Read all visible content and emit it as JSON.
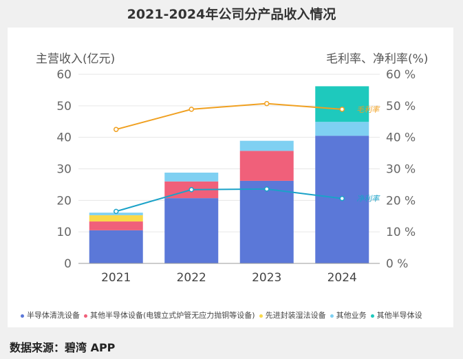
{
  "page_title": "2021-2024年公司分产品收入情况",
  "source": "数据来源：碧湾 APP",
  "chart_data": {
    "type": "bar",
    "stacked": true,
    "title": "2021-2024年公司分产品收入情况",
    "categories": [
      "2021",
      "2022",
      "2023",
      "2024"
    ],
    "ylabel": "主营收入(亿元)",
    "y2label": "毛利率、净利率(%)",
    "ylim": [
      0,
      60
    ],
    "y2lim": [
      0,
      60
    ],
    "yticks": [
      "0",
      "10",
      "20",
      "30",
      "40",
      "50",
      "60"
    ],
    "y2ticks": [
      "0 %",
      "10 %",
      "20 %",
      "30 %",
      "40 %",
      "50 %",
      "60 %"
    ],
    "series": [
      {
        "name": "半导体清洗设备",
        "color": "#5b78d8",
        "values": [
          10.5,
          20.7,
          26.2,
          40.5
        ]
      },
      {
        "name": "其他半导体设备(电镀立式炉管无应力抛铜等设备)",
        "color": "#f0607a",
        "values": [
          2.8,
          5.3,
          9.5,
          0
        ]
      },
      {
        "name": "先进封装湿法设备",
        "color": "#f9d94a",
        "values": [
          2.0,
          0,
          0,
          0
        ]
      },
      {
        "name": "其他业务",
        "color": "#7fd0f2",
        "values": [
          0.8,
          2.8,
          3.2,
          4.4
        ]
      },
      {
        "name": "其他半导体设",
        "color": "#1ec9bd",
        "values": [
          0,
          0,
          0,
          11.3
        ]
      }
    ],
    "lines": [
      {
        "name": "毛利率",
        "color": "#f0a020",
        "values": [
          42.5,
          48.9,
          50.7,
          48.9
        ]
      },
      {
        "name": "净利率",
        "color": "#1aa2c8",
        "values": [
          16.5,
          23.4,
          23.6,
          20.6
        ]
      }
    ]
  }
}
